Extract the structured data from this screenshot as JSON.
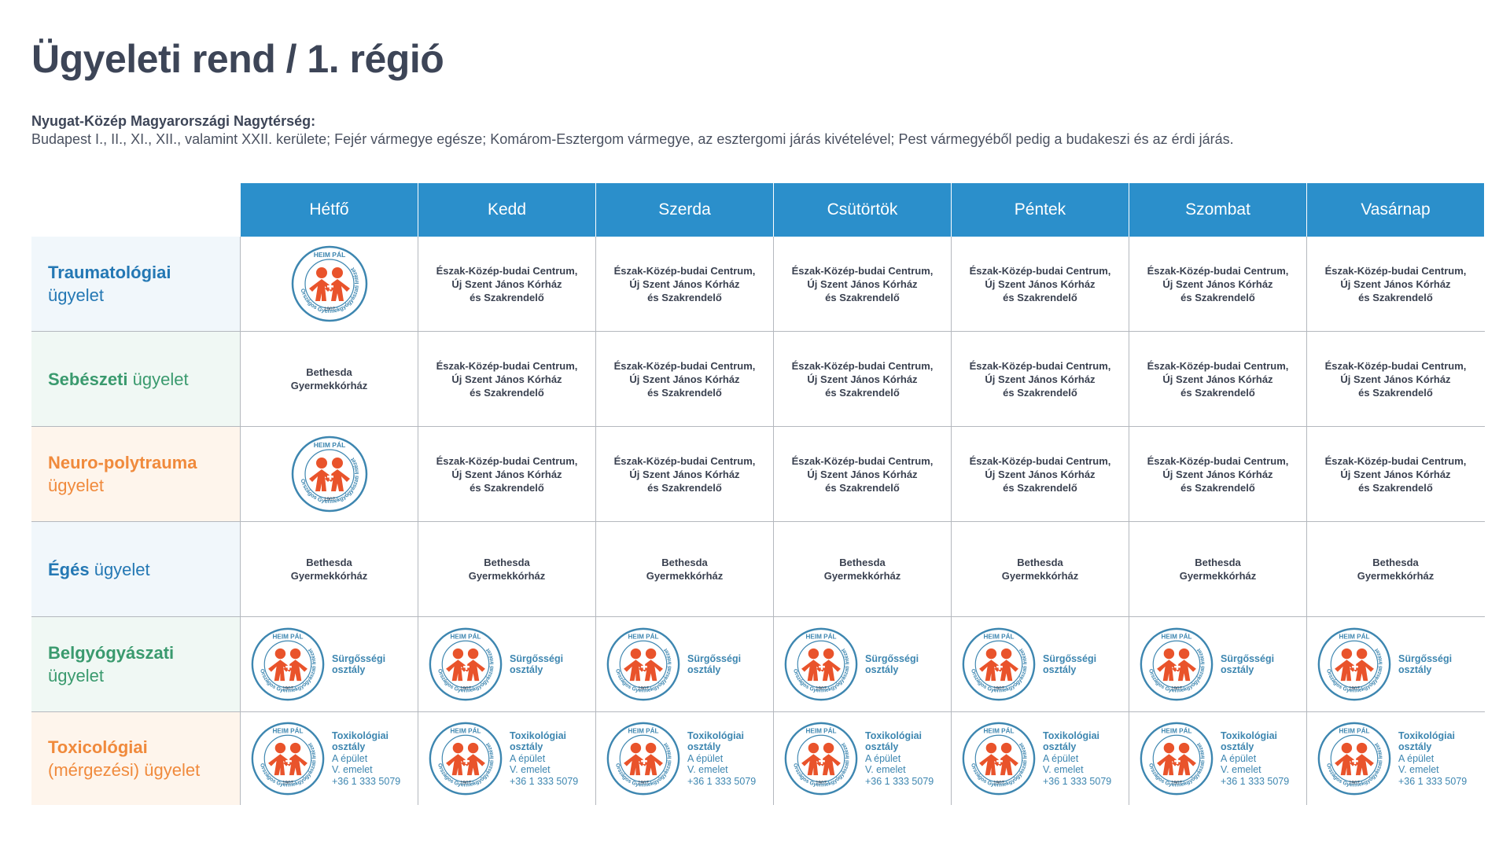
{
  "page": {
    "title": "Ügyeleti rend / 1. régió",
    "region_title": "Nyugat-Közép Magyarországi Nagytérség:",
    "region_desc": "Budapest I., II., XI., XII., valamint XXII. kerülete; Fejér vármegye egésze; Komárom-Esztergom vármegye, az esztergomi járás kivételével; Pest vármegyéből pedig a budakeszi és az érdi járás."
  },
  "days": [
    "Hétfő",
    "Kedd",
    "Szerda",
    "Csütörtök",
    "Péntek",
    "Szombat",
    "Vasárnap"
  ],
  "logo": {
    "top": "HEIM PÁL",
    "ring": "Országos Gyermekgyógyászati Intézet",
    "year": "1907",
    "colors": {
      "ring": "#3d86b0",
      "figures": "#e9532b"
    }
  },
  "texts": {
    "eszak_l1": "Észak-Közép-budai Centrum,",
    "eszak_l2": "Új Szent János Kórház",
    "eszak_l3": "és Szakrendelő",
    "bethesda_l1": "Bethesda",
    "bethesda_l2": "Gyermekkórház",
    "surg_l1": "Sürgősségi",
    "surg_l2": "osztály",
    "tox_l1": "Toxikológiai",
    "tox_l2": "osztály",
    "tox_l3": "A épület",
    "tox_l4": "V. emelet",
    "tox_l5": "+36 1 333 5079"
  },
  "rows": [
    {
      "strong": "Traumatológiai",
      "rest": "ügyelet",
      "inline": false,
      "bg": "blue",
      "color": "blue",
      "cells": [
        "logo",
        "eszak",
        "eszak",
        "eszak",
        "eszak",
        "eszak",
        "eszak"
      ]
    },
    {
      "strong": "Sebészeti",
      "rest": " ügyelet",
      "inline": true,
      "bg": "green",
      "color": "green",
      "cells": [
        "bethesda",
        "eszak",
        "eszak",
        "eszak",
        "eszak",
        "eszak",
        "eszak"
      ]
    },
    {
      "strong": "Neuro-polytrauma",
      "rest": "ügyelet",
      "inline": false,
      "bg": "orange",
      "color": "orange",
      "cells": [
        "logo",
        "eszak",
        "eszak",
        "eszak",
        "eszak",
        "eszak",
        "eszak"
      ]
    },
    {
      "strong": "Égés",
      "rest": " ügyelet",
      "inline": true,
      "bg": "blue",
      "color": "blue",
      "cells": [
        "bethesda",
        "bethesda",
        "bethesda",
        "bethesda",
        "bethesda",
        "bethesda",
        "bethesda"
      ]
    },
    {
      "strong": "Belgyógyászati",
      "rest": "ügyelet",
      "inline": false,
      "bg": "green",
      "color": "green",
      "cells": [
        "surg",
        "surg",
        "surg",
        "surg",
        "surg",
        "surg",
        "surg"
      ]
    },
    {
      "strong": "Toxicológiai",
      "rest": "(mérgezési) ügyelet",
      "inline": false,
      "bg": "orange",
      "color": "orange",
      "cells": [
        "tox",
        "tox",
        "tox",
        "tox",
        "tox",
        "tox",
        "tox"
      ]
    }
  ]
}
